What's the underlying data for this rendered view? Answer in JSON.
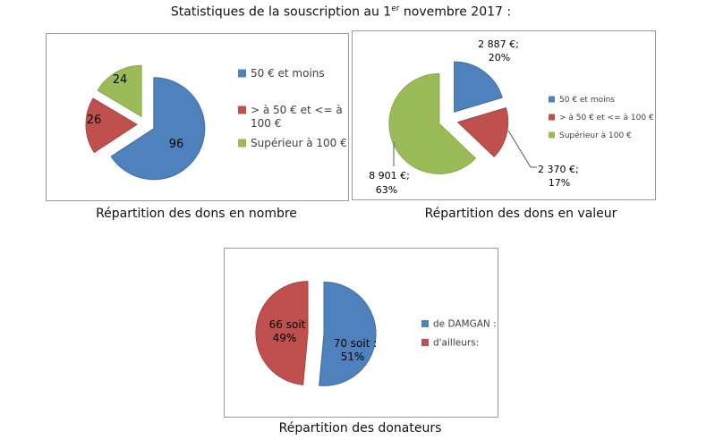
{
  "page_title": {
    "prefix": "Statistiques de la souscription au 1",
    "sup": "er",
    "suffix": " novembre 2017 :"
  },
  "palette": {
    "blue": "#4f81bd",
    "red": "#c0504d",
    "green": "#9bbb59",
    "panel_border": "#9b9b9b",
    "leader_line": "#595959",
    "label_text": "#000000",
    "legend_text": "#3f3f3f"
  },
  "chart_data": [
    {
      "type": "pie",
      "title": "Répartition des dons en nombre",
      "categories": [
        "50 € et moins",
        "> à 50 € et <= à 100 €",
        "Supérieur à 100 €"
      ],
      "values": [
        96,
        26,
        24
      ],
      "colors": [
        "#4f81bd",
        "#c0504d",
        "#9bbb59"
      ],
      "slice_borders": [
        "#3f6ea5",
        "#a8433f",
        "#89a84b"
      ],
      "data_labels": [
        [
          "96"
        ],
        [
          "26"
        ],
        [
          "24"
        ]
      ],
      "legend_lines": [
        [
          "50 € et moins"
        ],
        [
          "> à 50 € et <= à",
          "100 €"
        ],
        [
          "Supérieur à 100 €"
        ]
      ],
      "legend_position": "right",
      "exploded": true
    },
    {
      "type": "pie",
      "title": "Répartition des dons en valeur",
      "categories": [
        "50 € et moins",
        "> à 50 € et <= à 100 €",
        "Supérieur à 100 €"
      ],
      "values": [
        2887,
        2370,
        8901
      ],
      "percent_labels": [
        "20%",
        "17%",
        "63%"
      ],
      "colors": [
        "#4f81bd",
        "#c0504d",
        "#9bbb59"
      ],
      "slice_borders": [
        "#3f6ea5",
        "#a8433f",
        "#89a84b"
      ],
      "data_labels": [
        [
          "2 887 €;",
          "20%"
        ],
        [
          "2 370 €;",
          "17%"
        ],
        [
          "8 901 €;",
          "63%"
        ]
      ],
      "legend_lines": [
        [
          "50 € et moins"
        ],
        [
          "> à 50 € et <= à 100 €"
        ],
        [
          "Supérieur à 100 €"
        ]
      ],
      "legend_position": "right",
      "exploded": true
    },
    {
      "type": "pie",
      "title": "Répartition des donateurs",
      "categories": [
        "de DAMGAN :",
        "d'ailleurs:"
      ],
      "values": [
        70,
        66
      ],
      "percent_labels": [
        "51%",
        "49%"
      ],
      "colors": [
        "#4f81bd",
        "#c0504d"
      ],
      "slice_borders": [
        "#3f6ea5",
        "#a8433f"
      ],
      "data_labels": [
        [
          "70 soit :",
          "51%"
        ],
        [
          "66 soit",
          "49%"
        ]
      ],
      "legend_lines": [
        [
          "de DAMGAN :"
        ],
        [
          "d'ailleurs:"
        ]
      ],
      "legend_position": "right",
      "exploded": true
    }
  ]
}
